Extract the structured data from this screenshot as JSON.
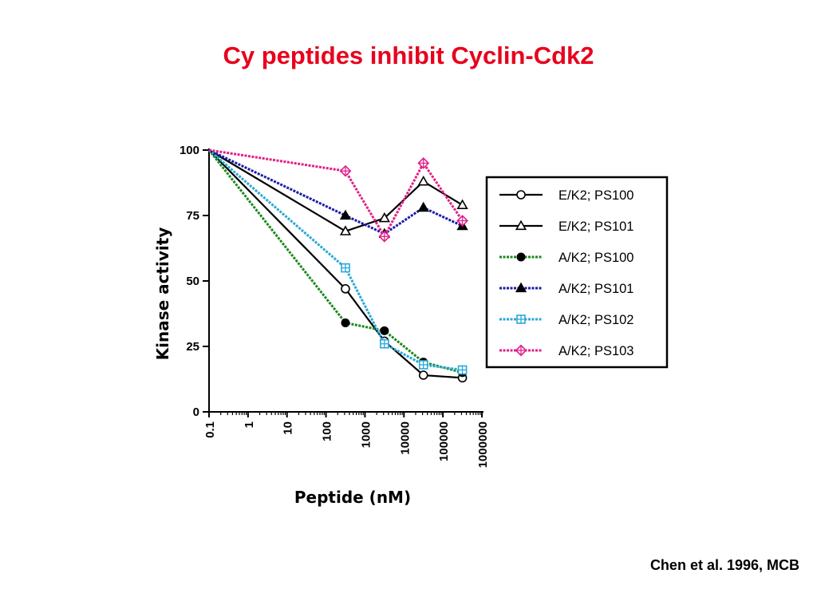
{
  "slide": {
    "title": "Cy peptides inhibit Cyclin-Cdk2",
    "citation": "Chen et al. 1996, MCB"
  },
  "chart_data": {
    "type": "line",
    "title": "",
    "xlabel": "Peptide (nM)",
    "ylabel": "Kinase activity",
    "x_scale": "log",
    "xlim": [
      0.1,
      1000000
    ],
    "ylim": [
      0,
      100
    ],
    "x_ticks": [
      0.1,
      1,
      10,
      100,
      1000,
      10000,
      100000,
      1000000
    ],
    "x_tick_labels": [
      "0.1",
      "1",
      "10",
      "100",
      "1000",
      "10000",
      "100000",
      "1000000"
    ],
    "y_ticks": [
      0,
      25,
      50,
      75,
      100
    ],
    "y_tick_labels": [
      "0",
      "25",
      "50",
      "75",
      "100"
    ],
    "legend_position": "right",
    "grid": false,
    "series": [
      {
        "name": "E/K2; PS100",
        "color": "#000000",
        "line": "solid",
        "marker": "circle-open",
        "x": [
          0.1,
          316,
          3162,
          31623,
          316228
        ],
        "y": [
          100,
          47,
          27,
          14,
          13
        ]
      },
      {
        "name": "E/K2; PS101",
        "color": "#000000",
        "line": "solid",
        "marker": "triangle-open",
        "x": [
          0.1,
          316,
          3162,
          31623,
          316228
        ],
        "y": [
          100,
          69,
          74,
          88,
          79
        ]
      },
      {
        "name": "A/K2; PS100",
        "color": "#1a8a1a",
        "line": "dashed",
        "marker": "circle-filled",
        "x": [
          0.1,
          316,
          3162,
          31623,
          316228
        ],
        "y": [
          100,
          34,
          31,
          19,
          15
        ]
      },
      {
        "name": "A/K2; PS101",
        "color": "#1a1aaa",
        "line": "dashed",
        "marker": "triangle-filled",
        "x": [
          0.1,
          316,
          3162,
          31623,
          316228
        ],
        "y": [
          100,
          75,
          68,
          78,
          71
        ]
      },
      {
        "name": "A/K2; PS102",
        "color": "#29a8d8",
        "line": "dashed",
        "marker": "square-plus",
        "x": [
          0.1,
          316,
          3162,
          31623,
          316228
        ],
        "y": [
          100,
          55,
          26,
          18,
          16
        ]
      },
      {
        "name": "A/K2; PS103",
        "color": "#e0208a",
        "line": "dashed",
        "marker": "diamond-plus",
        "x": [
          0.1,
          316,
          3162,
          31623,
          316228
        ],
        "y": [
          100,
          92,
          67,
          95,
          73
        ]
      }
    ]
  }
}
